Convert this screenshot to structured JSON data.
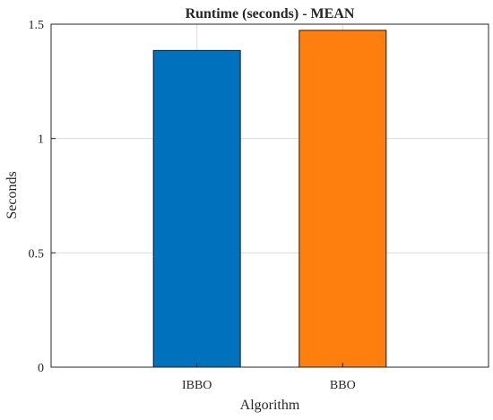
{
  "chart_data": {
    "type": "bar",
    "title": "Runtime (seconds) - MEAN",
    "xlabel": "Algorithm",
    "ylabel": "Seconds",
    "categories": [
      "IBBO",
      "BBO"
    ],
    "values": [
      1.385,
      1.473
    ],
    "colors": [
      "#0072BD",
      "#FF7F0E"
    ],
    "ylim": [
      0,
      1.5
    ],
    "yticks": [
      "0",
      "0.5",
      "1",
      "1.5"
    ],
    "grid": true,
    "legend": "none"
  }
}
